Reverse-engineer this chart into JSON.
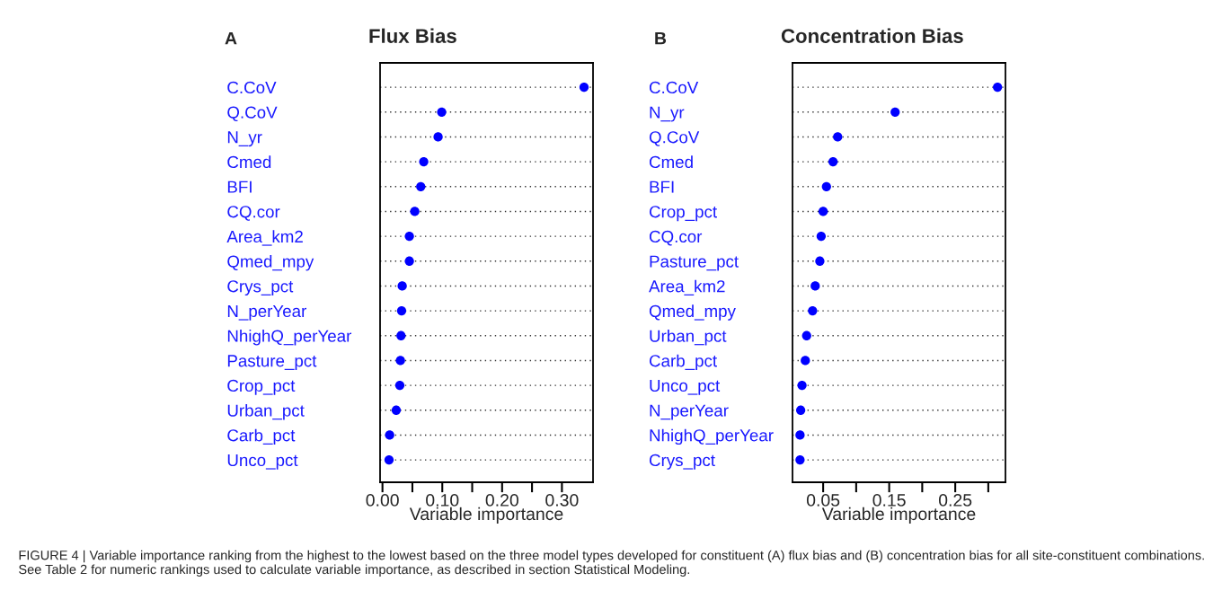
{
  "chart_data": [
    {
      "type": "scatter",
      "orientation": "horizontal",
      "title": "Flux Bias",
      "xlabel": "Variable importance",
      "annotations": [
        "A",
        "FIGURE 4 | Variable importance ranking from the highest to the lowest based on the three model types developed for constituent (A) flux bias and (B) concentration bias for all site-constituent combinations. See Table 2 for numeric rankings used to calculate variable importance, as described in section Statistical Modeling."
      ],
      "categories": [
        "C.CoV",
        "Q.CoV",
        "N_yr",
        "Cmed",
        "BFI",
        "CQ.cor",
        "Area_km2",
        "Qmed_mpy",
        "Crys_pct",
        "N_perYear",
        "NhighQ_perYear",
        "Pasture_pct",
        "Crop_pct",
        "Urban_pct",
        "Carb_pct",
        "Unco_pct"
      ],
      "series": [
        {
          "color": "#0000ff",
          "values": [
            0.337,
            0.099,
            0.093,
            0.069,
            0.064,
            0.054,
            0.045,
            0.045,
            0.033,
            0.032,
            0.031,
            0.03,
            0.029,
            0.023,
            0.012,
            0.011
          ]
        }
      ],
      "xlim": [
        -0.004,
        0.352
      ],
      "xticks": [
        {
          "value": 0,
          "label": "0.00"
        },
        {
          "value": 0.05,
          "label": null
        },
        {
          "value": 0.1,
          "label": "0.10"
        },
        {
          "value": 0.15,
          "label": null
        },
        {
          "value": 0.2,
          "label": "0.20"
        },
        {
          "value": 0.25,
          "label": null
        },
        {
          "value": 0.3,
          "label": "0.30"
        }
      ],
      "grid": "y",
      "marker": "circle"
    },
    {
      "type": "scatter",
      "orientation": "horizontal",
      "title": "Concentration Bias",
      "xlabel": "Variable importance",
      "annotations": [
        "B"
      ],
      "categories": [
        "C.CoV",
        "N_yr",
        "Q.CoV",
        "Cmed",
        "BFI",
        "Crop_pct",
        "CQ.cor",
        "Pasture_pct",
        "Area_km2",
        "Qmed_mpy",
        "Urban_pct",
        "Carb_pct",
        "Unco_pct",
        "N_perYear",
        "NhighQ_perYear",
        "Crys_pct"
      ],
      "series": [
        {
          "color": "#0000ff",
          "values": [
            0.314,
            0.159,
            0.072,
            0.065,
            0.055,
            0.05,
            0.047,
            0.045,
            0.038,
            0.034,
            0.025,
            0.023,
            0.018,
            0.016,
            0.015,
            0.015
          ]
        }
      ],
      "xlim": [
        0.0036,
        0.326
      ],
      "xticks": [
        0.05,
        {
          "value": 0.1,
          "label": null
        },
        0.15,
        {
          "value": 0.2,
          "label": null
        },
        0.25,
        {
          "value": 0.3,
          "label": null
        }
      ],
      "grid": "y",
      "marker": "circle"
    }
  ]
}
